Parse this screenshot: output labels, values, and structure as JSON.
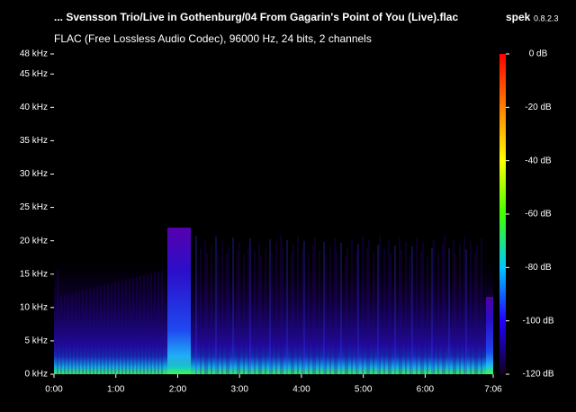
{
  "header": {
    "title": "... Svensson Trio/Live in Gothenburg/04 From Gagarin's Point of You (Live).flac",
    "app": "spek",
    "version": "0.8.2.3",
    "subtitle": "FLAC (Free Lossless Audio Codec), 96000 Hz, 24 bits, 2 channels"
  },
  "axes": {
    "y": {
      "lim": [
        0,
        48
      ],
      "ticks": [
        {
          "value": 0,
          "label": "0 kHz"
        },
        {
          "value": 5,
          "label": "5 kHz"
        },
        {
          "value": 10,
          "label": "10 kHz"
        },
        {
          "value": 15,
          "label": "15 kHz"
        },
        {
          "value": 20,
          "label": "20 kHz"
        },
        {
          "value": 25,
          "label": "25 kHz"
        },
        {
          "value": 30,
          "label": "30 kHz"
        },
        {
          "value": 35,
          "label": "35 kHz"
        },
        {
          "value": 40,
          "label": "40 kHz"
        },
        {
          "value": 45,
          "label": "45 kHz"
        },
        {
          "value": 48,
          "label": "48 kHz"
        }
      ]
    },
    "x": {
      "lim": [
        0,
        426
      ],
      "ticks": [
        {
          "value": 0,
          "label": "0:00"
        },
        {
          "value": 60,
          "label": "1:00"
        },
        {
          "value": 120,
          "label": "2:00"
        },
        {
          "value": 180,
          "label": "3:00"
        },
        {
          "value": 240,
          "label": "4:00"
        },
        {
          "value": 300,
          "label": "5:00"
        },
        {
          "value": 360,
          "label": "6:00"
        },
        {
          "value": 426,
          "label": "7:06"
        }
      ]
    },
    "colorbar": {
      "lim": [
        -120,
        0
      ],
      "ticks": [
        {
          "value": 0,
          "label": "0 dB"
        },
        {
          "value": -20,
          "label": "-20 dB"
        },
        {
          "value": -40,
          "label": "-40 dB"
        },
        {
          "value": -60,
          "label": "-60 dB"
        },
        {
          "value": -80,
          "label": "-80 dB"
        },
        {
          "value": -100,
          "label": "-100 dB"
        },
        {
          "value": -120,
          "label": "-120 dB"
        }
      ]
    }
  }
}
